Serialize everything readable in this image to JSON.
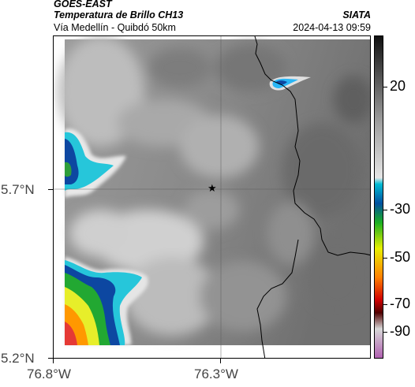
{
  "header": {
    "satellite": "GOES-EAST",
    "product": "Temperatura de Brillo CH13",
    "institution": "SIATA",
    "region": "Vía Medellín - Quibdó 50km",
    "timestamp": "2024-04-13 09:59"
  },
  "map": {
    "lat_labels": [
      "5.7°N",
      "5.2°N"
    ],
    "lon_labels": [
      "76.8°W",
      "76.3°W"
    ],
    "marker": "star-icon",
    "colors": {
      "background_gray": "#8a8a8a",
      "borders": "#000000",
      "gridlines": "#606060"
    }
  },
  "colorbar": {
    "labels": [
      "20",
      "-30",
      "-50",
      "-70",
      "-90"
    ],
    "unit": "",
    "stops": [
      "#101010",
      "#a0a0a0",
      "#e6e6e6",
      "#00bcd4",
      "#0050a0",
      "#1bb020",
      "#e8f000",
      "#ff8000",
      "#d00000",
      "#500000",
      "#d8d8d8",
      "#b060b0"
    ]
  }
}
